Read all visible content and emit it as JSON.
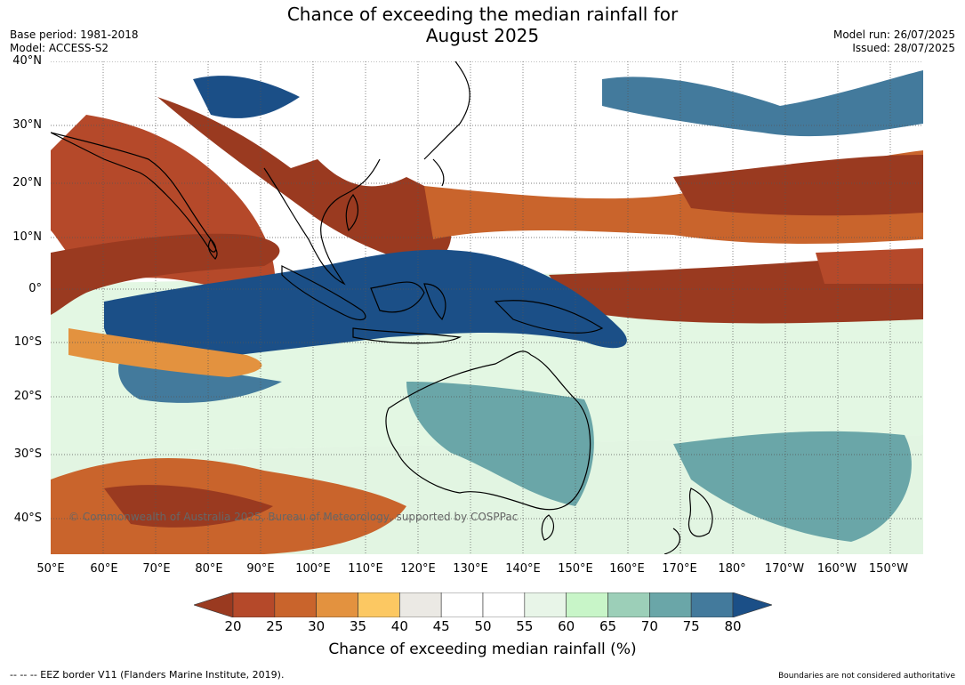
{
  "header": {
    "title_line1": "Chance of exceeding the median rainfall for",
    "title_line2": "August 2025",
    "base_period": "Base period: 1981-2018",
    "model": "Model: ACCESS-S2",
    "model_run": "Model run: 26/07/2025",
    "issued": "Issued: 28/07/2025"
  },
  "map": {
    "credit": "© Commonwealth of Australia 2025, Bureau of Meteorology, supported by COSPPac",
    "lat_labels": [
      "40°N",
      "30°N",
      "20°N",
      "10°N",
      "0°",
      "10°S",
      "20°S",
      "30°S",
      "40°S"
    ],
    "lon_labels": [
      "50°E",
      "60°E",
      "70°E",
      "80°E",
      "90°E",
      "100°E",
      "110°E",
      "120°E",
      "130°E",
      "140°E",
      "150°E",
      "160°E",
      "170°E",
      "180°",
      "170°W",
      "160°W",
      "150°W"
    ]
  },
  "colorbar": {
    "ticks": [
      "20",
      "25",
      "30",
      "35",
      "40",
      "45",
      "50",
      "55",
      "60",
      "65",
      "70",
      "75",
      "80"
    ],
    "colors": [
      "#9a3a20",
      "#b5492a",
      "#c9642c",
      "#e3923f",
      "#fcc862",
      "#ebe9e4",
      "#ffffff",
      "#ffffff",
      "#e8f5e8",
      "#c8f5c8",
      "#9ccfb8",
      "#6aa6a8",
      "#437a9c",
      "#1b4f87"
    ],
    "label": "Chance of exceeding median rainfall (%)"
  },
  "footer": {
    "eez_note": "--  --  -- EEZ border V11 (Flanders Marine Institute, 2019).",
    "boundaries_note": "Boundaries are not considered authoritative"
  }
}
